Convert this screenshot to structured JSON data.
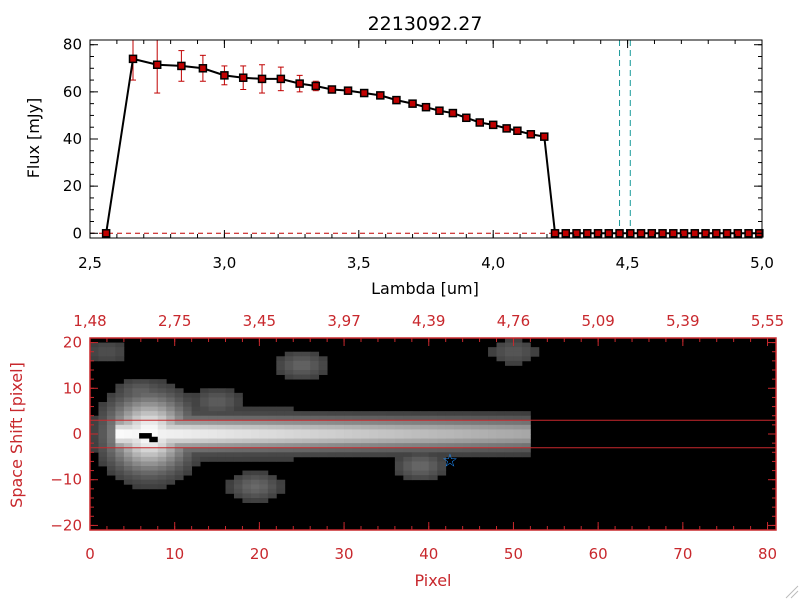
{
  "chart_data": [
    {
      "type": "line",
      "title": "2213092.27",
      "xlabel": "Lambda [um]",
      "ylabel": "Flux [mJy]",
      "xlim": [
        2.5,
        5.0
      ],
      "ylim": [
        -2,
        82
      ],
      "xticks": [
        "2.5",
        "3.0",
        "3.5",
        "4.0",
        "4.5",
        "5.0"
      ],
      "yticks": [
        "0",
        "20",
        "40",
        "60",
        "80"
      ],
      "line_color": "#000000",
      "marker_color": "#c00000",
      "errorbar_color": "#c00000",
      "vlines": {
        "x": [
          4.47,
          4.51
        ],
        "color": "#1a9a9a",
        "style": "dashed"
      },
      "baseline": {
        "y": 0,
        "color": "#c00000",
        "style": "dashed"
      },
      "series": [
        {
          "x": [
            2.56,
            2.66,
            2.75,
            2.84,
            2.92,
            3.0,
            3.07,
            3.14,
            3.21,
            3.28,
            3.34,
            3.4,
            3.46,
            3.52,
            3.58,
            3.64,
            3.7,
            3.75,
            3.8,
            3.85,
            3.9,
            3.95,
            4.0,
            4.05,
            4.09,
            4.14,
            4.19,
            4.23,
            4.27,
            4.31,
            4.35,
            4.39,
            4.43,
            4.47,
            4.51,
            4.55,
            4.59,
            4.63,
            4.67,
            4.71,
            4.75,
            4.79,
            4.83,
            4.87,
            4.91,
            4.95,
            4.99
          ],
          "y": [
            0,
            74,
            71.5,
            71,
            70,
            67,
            66,
            65.5,
            65.5,
            63.5,
            62.5,
            61,
            60.5,
            59.5,
            58.5,
            56.5,
            55,
            53.5,
            52,
            51,
            49,
            47,
            46,
            44.5,
            43.5,
            42,
            41,
            0,
            0,
            0,
            0,
            0,
            0,
            0,
            0,
            0,
            0,
            0,
            0,
            0,
            0,
            0,
            0,
            0,
            0,
            0,
            0
          ],
          "yerr": [
            0,
            9,
            12,
            6.5,
            5.5,
            4,
            5,
            6,
            5,
            3.5,
            2,
            1,
            0.8,
            1,
            0.8,
            0.7,
            0.7,
            0.6,
            0.6,
            0.6,
            0.6,
            0.6,
            0.6,
            0.6,
            0.6,
            0.6,
            0.6,
            0,
            0,
            0,
            0,
            0,
            0,
            0,
            0,
            0,
            0,
            0,
            0,
            0,
            0,
            0,
            0,
            0,
            0,
            0,
            0
          ]
        }
      ]
    },
    {
      "type": "heatmap",
      "title": "",
      "xlabel": "Pixel",
      "ylabel": "Space Shift [pixel]",
      "xlim": [
        0,
        81
      ],
      "ylim": [
        -21,
        21
      ],
      "xticks": [
        "0",
        "10",
        "20",
        "30",
        "40",
        "50",
        "60",
        "70",
        "80"
      ],
      "yticks": [
        "-20",
        "-10",
        "0",
        "10",
        "20"
      ],
      "top_axis_ticks": [
        "1.48",
        "2.75",
        "3.45",
        "3.97",
        "4.39",
        "4.76",
        "5.09",
        "5.39",
        "5.55"
      ],
      "axis_color": "#c8282d",
      "hlines": {
        "y": [
          3,
          -3
        ],
        "color": "#c8282d"
      },
      "star_marker": {
        "x": 42.5,
        "y": -5.8,
        "color": "#1f8fff"
      },
      "trace": {
        "x_start": 3,
        "x_end": 52,
        "y_center": 0,
        "peak_x": 7
      },
      "blobs": [
        {
          "x": 25,
          "y": 15,
          "level": 0.28
        },
        {
          "x": 50,
          "y": 18,
          "level": 0.22
        },
        {
          "x": 19.5,
          "y": -11.5,
          "level": 0.3
        },
        {
          "x": 39,
          "y": -7,
          "level": 0.3
        },
        {
          "x": 6,
          "y": 9,
          "level": 0.28
        },
        {
          "x": 15,
          "y": 7,
          "level": 0.25
        },
        {
          "x": 2,
          "y": 18,
          "level": 0.18
        }
      ]
    }
  ]
}
